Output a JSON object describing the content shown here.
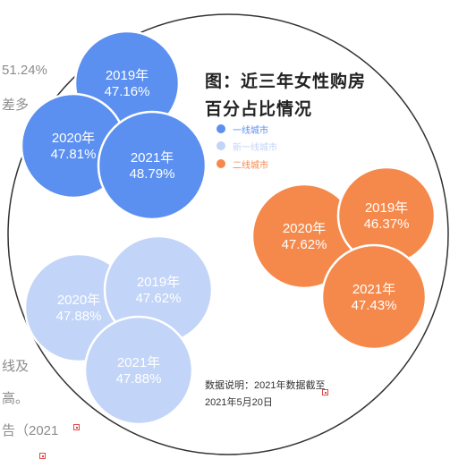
{
  "background_text": {
    "line1": "51.24%",
    "line2": "差多",
    "line3": "线及",
    "line4": "高。",
    "line5": "告（2021"
  },
  "chart_data": {
    "type": "bubble",
    "title_line1": "图：近三年女性购房",
    "title_line2": "百分占比情况",
    "categories": [
      "2019年",
      "2020年",
      "2021年"
    ],
    "series": [
      {
        "name": "一线城市",
        "color": "#5b8ff0",
        "values": [
          47.16,
          47.81,
          48.79
        ],
        "labels": [
          "47.16%",
          "47.81%",
          "48.79%"
        ]
      },
      {
        "name": "新一线城市",
        "color": "#c2d4f7",
        "values": [
          47.62,
          47.88,
          47.88
        ],
        "labels": [
          "47.62%",
          "47.88%",
          "47.88%"
        ]
      },
      {
        "name": "二线城市",
        "color": "#f5894b",
        "values": [
          46.37,
          47.62,
          47.43
        ],
        "labels": [
          "46.37%",
          "47.62%",
          "47.43%"
        ]
      }
    ],
    "note_line1": "数据说明：2021年数据截至",
    "note_line2": "2021年5月20日"
  }
}
